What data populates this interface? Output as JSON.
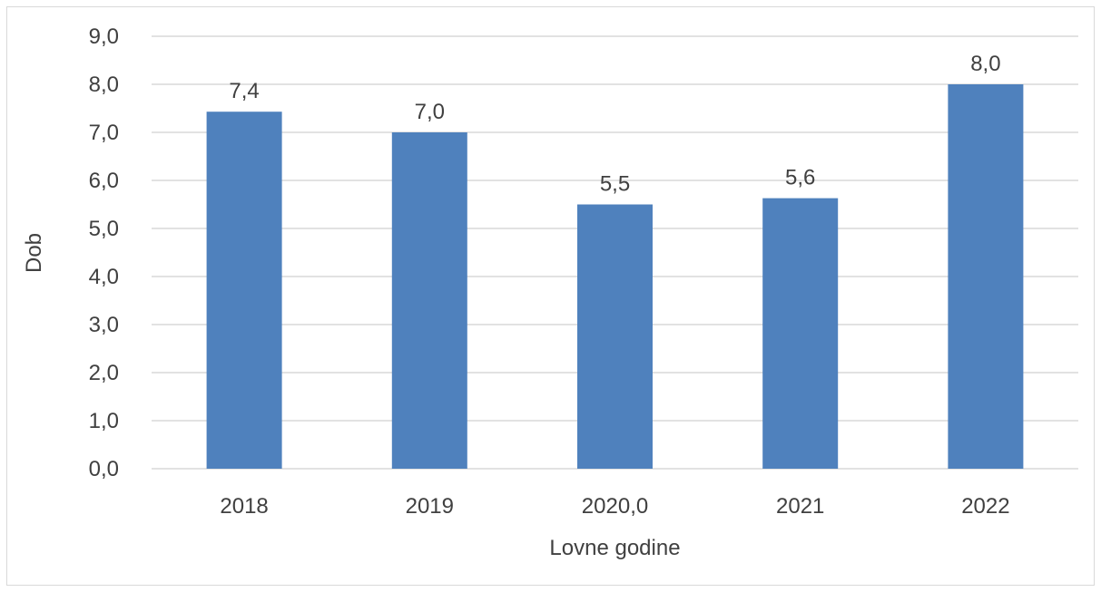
{
  "chart_data": {
    "type": "bar",
    "categories": [
      "2018",
      "2019",
      "2020,0",
      "2021",
      "2022"
    ],
    "values": [
      7.43,
      7.0,
      5.5,
      5.63,
      8.0
    ],
    "data_labels": [
      "7,4",
      "7,0",
      "5,5",
      "5,6",
      "8,0"
    ],
    "title": "",
    "xlabel": "Lovne godine",
    "ylabel": "Dob",
    "ylim": [
      0,
      9
    ],
    "y_ticks": [
      "0,0",
      "1,0",
      "2,0",
      "3,0",
      "4,0",
      "5,0",
      "6,0",
      "7,0",
      "8,0",
      "9,0"
    ],
    "grid": true,
    "legend": "none",
    "bar_color": "#4f81bd",
    "grid_color": "#d9d9d9",
    "text_color": "#404040"
  }
}
